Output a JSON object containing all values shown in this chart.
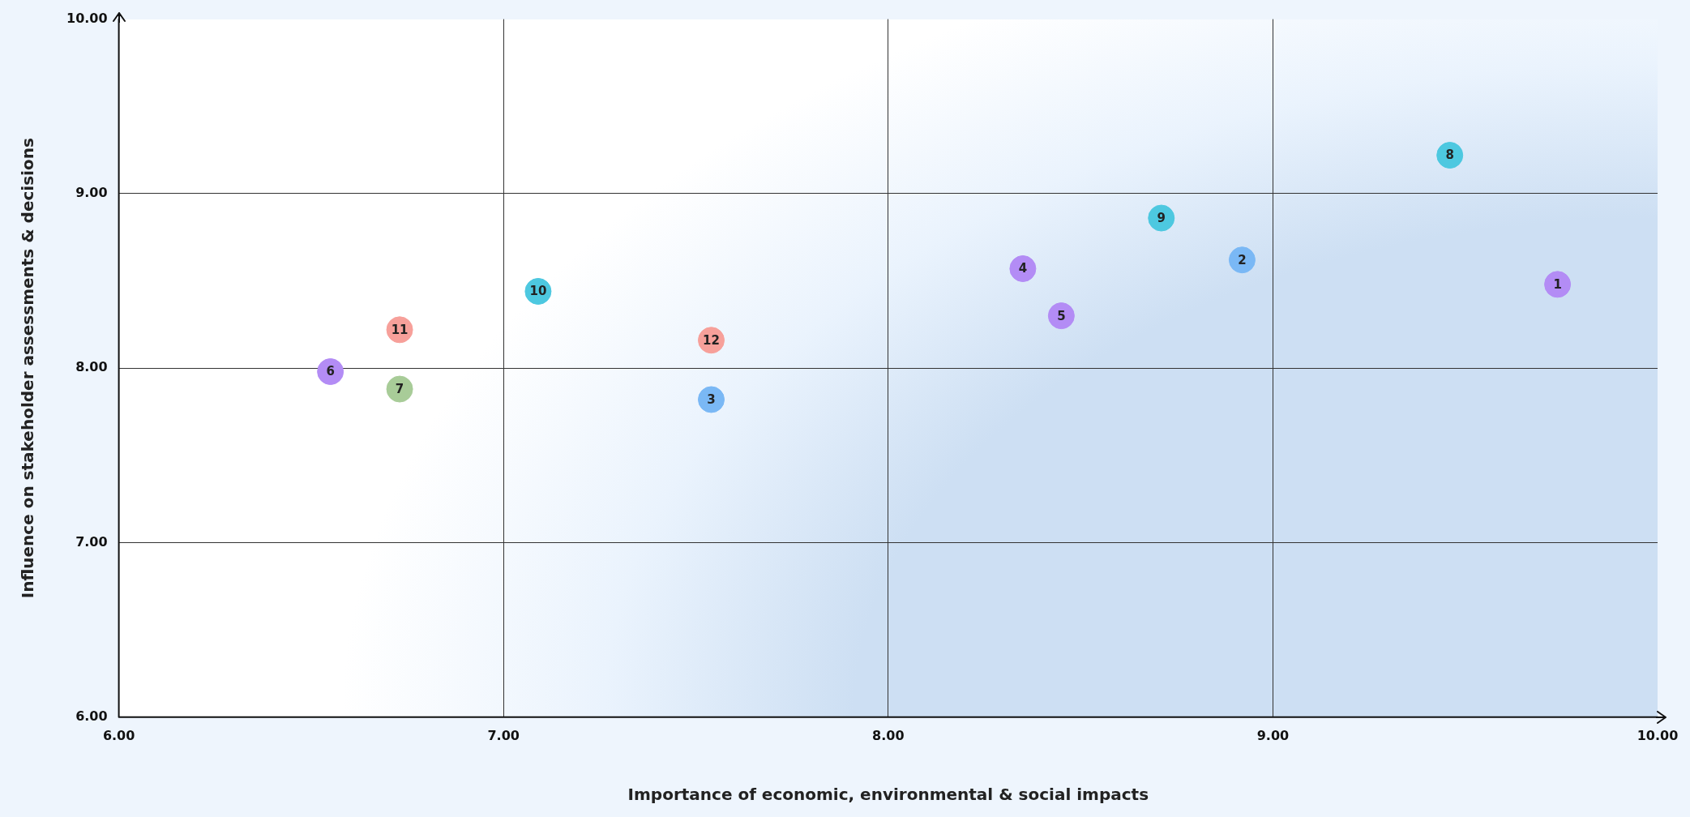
{
  "chart_data": {
    "type": "scatter",
    "xlabel": "Importance of economic, environmental & social impacts",
    "ylabel": "Influence on stakeholder assessments & decisions",
    "x": [
      9.74,
      8.92,
      7.54,
      8.35,
      8.45,
      6.55,
      6.73,
      9.46,
      8.71,
      7.09,
      6.73,
      7.54
    ],
    "values": [
      8.48,
      8.62,
      7.82,
      8.57,
      8.3,
      7.98,
      7.88,
      9.22,
      8.86,
      8.44,
      8.22,
      8.16
    ],
    "annotations": [
      {
        "text": "1",
        "x": 9.74,
        "y": 8.48
      },
      {
        "text": "2",
        "x": 8.92,
        "y": 8.62
      },
      {
        "text": "3",
        "x": 7.54,
        "y": 7.82
      },
      {
        "text": "4",
        "x": 8.35,
        "y": 8.57
      },
      {
        "text": "5",
        "x": 8.45,
        "y": 8.3
      },
      {
        "text": "6",
        "x": 6.55,
        "y": 7.98
      },
      {
        "text": "7",
        "x": 6.73,
        "y": 7.88
      },
      {
        "text": "8",
        "x": 9.46,
        "y": 9.22
      },
      {
        "text": "9",
        "x": 8.71,
        "y": 8.86
      },
      {
        "text": "10",
        "x": 7.09,
        "y": 8.44
      },
      {
        "text": "11",
        "x": 6.73,
        "y": 8.22
      },
      {
        "text": "12",
        "x": 7.54,
        "y": 8.16
      }
    ],
    "colors": [
      "#b38cf5",
      "#7ab8f5",
      "#7ab8f5",
      "#b38cf5",
      "#b38cf5",
      "#b38cf5",
      "#a8cc98",
      "#4dc8e0",
      "#4dc8e0",
      "#4dc8e0",
      "#f7a09a",
      "#f7a09a"
    ],
    "xlim": [
      6,
      10
    ],
    "ylim": [
      6,
      10
    ],
    "xticks": [
      {
        "value": 6,
        "label": "6.00"
      },
      {
        "value": 7,
        "label": "7.00"
      },
      {
        "value": 8,
        "label": "8.00"
      },
      {
        "value": 9,
        "label": "9.00"
      },
      {
        "value": 10,
        "label": "10.00"
      }
    ],
    "yticks": [
      {
        "value": 6,
        "label": "6.00"
      },
      {
        "value": 7,
        "label": "7.00"
      },
      {
        "value": 8,
        "label": "8.00"
      },
      {
        "value": 9,
        "label": "9.00"
      },
      {
        "value": 10,
        "label": "10.00"
      }
    ],
    "grid": true,
    "legend": false,
    "marker": "circle"
  }
}
